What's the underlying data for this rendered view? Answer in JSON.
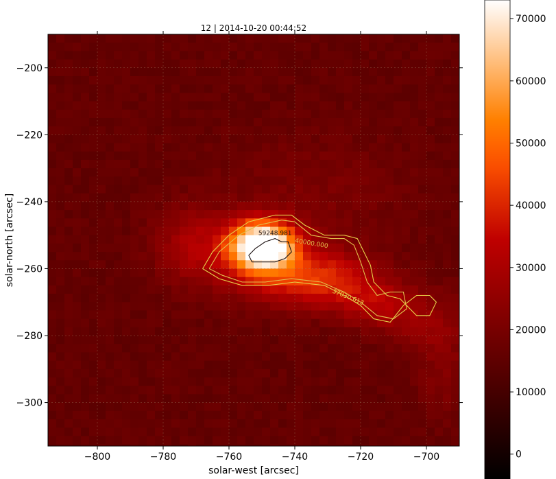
{
  "chart_data": {
    "type": "heatmap",
    "title": "12 | 2014-10-20 00:44:52",
    "xlabel": "solar-west [arcsec]",
    "ylabel": "solar-north [arcsec]",
    "xlim": [
      -815,
      -690
    ],
    "ylim": [
      -313,
      -190
    ],
    "xticks": [
      -800,
      -780,
      -760,
      -740,
      -720,
      -700
    ],
    "yticks": [
      -200,
      -220,
      -240,
      -260,
      -280,
      -300
    ],
    "grid": true,
    "colormap": "gist_heat",
    "colorbar": {
      "min": -4000,
      "max": 73000,
      "ticks": [
        0,
        10000,
        20000,
        30000,
        40000,
        50000,
        60000,
        70000
      ]
    },
    "contours": [
      {
        "level": "37030.613",
        "color": "#e5d24a"
      },
      {
        "level": "40000.000",
        "color": "#e0c04c"
      },
      {
        "level": "59248.981",
        "color": "#1a1010"
      }
    ],
    "intensity_sources": [
      {
        "x": -750,
        "y": -253,
        "peak": 70000,
        "sx": 7,
        "sy": 5
      },
      {
        "x": -743,
        "y": -262,
        "peak": 20000,
        "sx": 13,
        "sy": 6
      },
      {
        "x": -727,
        "y": -264,
        "peak": 14000,
        "sx": 10,
        "sy": 6
      },
      {
        "x": -714,
        "y": -271,
        "peak": 13000,
        "sx": 8,
        "sy": 5
      },
      {
        "x": -771,
        "y": -253,
        "peak": 14000,
        "sx": 8,
        "sy": 8
      },
      {
        "x": -700,
        "y": -276,
        "peak": 8000,
        "sx": 8,
        "sy": 6
      },
      {
        "x": -695,
        "y": -290,
        "peak": 6000,
        "sx": 6,
        "sy": 10
      },
      {
        "x": -735,
        "y": -238,
        "peak": 5000,
        "sx": 20,
        "sy": 12
      }
    ],
    "background_level": 16000
  }
}
